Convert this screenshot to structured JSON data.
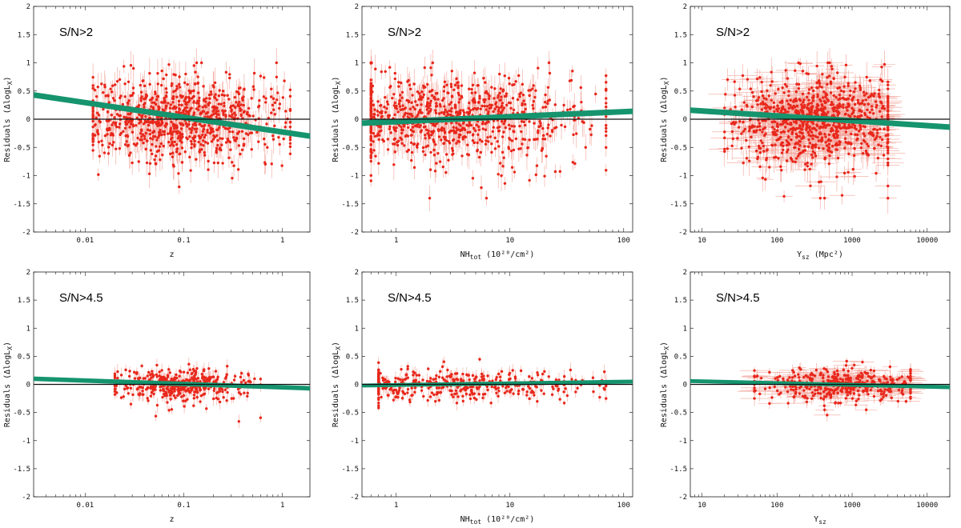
{
  "panels_style": {
    "point_color": "#e8271b",
    "errorbar_color": "#f2a49a",
    "band_color": "#15946e",
    "zero_line_color": "#111111",
    "frame_color": "#222222"
  },
  "chart_data": [
    {
      "type": "scatter",
      "xscale": "log",
      "xlim": [
        0.003,
        1.9
      ],
      "ylim": [
        -2,
        2
      ],
      "xticks": [
        0.01,
        0.1,
        1
      ],
      "xtick_labels": [
        "0.01",
        "0.1",
        "1"
      ],
      "yticks": [
        -2,
        -1.5,
        -1,
        -0.5,
        0,
        0.5,
        1,
        1.5,
        2
      ],
      "ytick_labels": [
        "-2",
        "-1.5",
        "-1",
        "-0.5",
        "0",
        "0.5",
        "1",
        "1.5",
        "2"
      ],
      "xlabel": "z",
      "xlabel_sub": "",
      "xlabel_tail": "",
      "ylabel": "Residuals (ΔlogL",
      "ylabel_sub": "X",
      "ylabel_tail": ")",
      "annotation": "S/N>2",
      "trend_band": {
        "x": [
          0.003,
          1.9
        ],
        "y": [
          0.43,
          -0.3
        ],
        "width": 0.1
      },
      "cloud": {
        "count": 900,
        "xmin": 0.012,
        "xmax": 1.2,
        "xpeak": 0.09,
        "spread": 0.38,
        "yerr": 0.2,
        "xerr": false
      }
    },
    {
      "type": "scatter",
      "xscale": "log",
      "xlim": [
        0.5,
        120
      ],
      "ylim": [
        -2,
        2
      ],
      "xticks": [
        1,
        10,
        100
      ],
      "xtick_labels": [
        "1",
        "10",
        "100"
      ],
      "yticks": [
        -2,
        -1.5,
        -1,
        -0.5,
        0,
        0.5,
        1,
        1.5,
        2
      ],
      "ytick_labels": [
        "-2",
        "-1.5",
        "-1",
        "-0.5",
        "0",
        "0.5",
        "1",
        "1.5",
        "2"
      ],
      "xlabel": "NH",
      "xlabel_sub": "tot",
      "xlabel_tail": " (10²⁰/cm²)",
      "ylabel": "Residuals (ΔlogL",
      "ylabel_sub": "X",
      "ylabel_tail": ")",
      "annotation": "S/N>2",
      "trend_band": {
        "x": [
          0.5,
          120
        ],
        "y": [
          -0.07,
          0.14
        ],
        "width": 0.1
      },
      "cloud": {
        "count": 900,
        "xmin": 0.6,
        "xmax": 70,
        "xpeak": 3,
        "spread": 0.38,
        "yerr": 0.2,
        "xerr": false
      }
    },
    {
      "type": "scatter",
      "xscale": "log",
      "xlim": [
        7,
        20000
      ],
      "ylim": [
        -2,
        2
      ],
      "xticks": [
        10,
        100,
        1000,
        10000
      ],
      "xtick_labels": [
        "10",
        "100",
        "1000",
        "10000"
      ],
      "yticks": [
        -2,
        -1.5,
        -1,
        -0.5,
        0,
        0.5,
        1,
        1.5,
        2
      ],
      "ytick_labels": [
        "-2",
        "-1.5",
        "-1",
        "-0.5",
        "0",
        "0.5",
        "1",
        "1.5",
        "2"
      ],
      "xlabel": "Y",
      "xlabel_sub": "sz",
      "xlabel_tail": " (Mpc²)",
      "ylabel": "Residuals (ΔlogL",
      "ylabel_sub": "X",
      "ylabel_tail": ")",
      "annotation": "S/N>2",
      "trend_band": {
        "x": [
          7,
          20000
        ],
        "y": [
          0.16,
          -0.14
        ],
        "width": 0.1
      },
      "cloud": {
        "count": 900,
        "xmin": 20,
        "xmax": 3000,
        "xpeak": 350,
        "spread": 0.38,
        "yerr": 0.2,
        "xerr": true
      }
    },
    {
      "type": "scatter",
      "xscale": "log",
      "xlim": [
        0.003,
        1.9
      ],
      "ylim": [
        -2,
        2
      ],
      "xticks": [
        0.01,
        0.1,
        1
      ],
      "xtick_labels": [
        "0.01",
        "0.1",
        "1"
      ],
      "yticks": [
        -2,
        -1.5,
        -1,
        -0.5,
        0,
        0.5,
        1,
        1.5,
        2
      ],
      "ytick_labels": [
        "-2",
        "-1.5",
        "-1",
        "-0.5",
        "0",
        "0.5",
        "1",
        "1.5",
        "2"
      ],
      "xlabel": "z",
      "xlabel_sub": "",
      "xlabel_tail": "",
      "ylabel": "Residuals (ΔlogL",
      "ylabel_sub": "X",
      "ylabel_tail": ")",
      "annotation": "S/N>4.5",
      "trend_band": {
        "x": [
          0.003,
          1.9
        ],
        "y": [
          0.1,
          -0.07
        ],
        "width": 0.08
      },
      "cloud": {
        "count": 420,
        "xmin": 0.02,
        "xmax": 0.6,
        "xpeak": 0.1,
        "spread": 0.14,
        "yerr": 0.1,
        "xerr": false
      }
    },
    {
      "type": "scatter",
      "xscale": "log",
      "xlim": [
        0.5,
        120
      ],
      "ylim": [
        -2,
        2
      ],
      "xticks": [
        1,
        10,
        100
      ],
      "xtick_labels": [
        "1",
        "10",
        "100"
      ],
      "yticks": [
        -2,
        -1.5,
        -1,
        -0.5,
        0,
        0.5,
        1,
        1.5,
        2
      ],
      "ytick_labels": [
        "-2",
        "-1.5",
        "-1",
        "-0.5",
        "0",
        "0.5",
        "1",
        "1.5",
        "2"
      ],
      "xlabel": "NH",
      "xlabel_sub": "tot",
      "xlabel_tail": " (10²⁰/cm²)",
      "ylabel": "Residuals (ΔlogL",
      "ylabel_sub": "X",
      "ylabel_tail": ")",
      "annotation": "S/N>4.5",
      "trend_band": {
        "x": [
          0.5,
          120
        ],
        "y": [
          -0.02,
          0.05
        ],
        "width": 0.07
      },
      "cloud": {
        "count": 420,
        "xmin": 0.7,
        "xmax": 70,
        "xpeak": 3,
        "spread": 0.14,
        "yerr": 0.1,
        "xerr": false
      }
    },
    {
      "type": "scatter",
      "xscale": "log",
      "xlim": [
        7,
        20000
      ],
      "ylim": [
        -2,
        2
      ],
      "xticks": [
        10,
        100,
        1000,
        10000
      ],
      "xtick_labels": [
        "10",
        "100",
        "1000",
        "10000"
      ],
      "yticks": [
        -2,
        -1.5,
        -1,
        -0.5,
        0,
        0.5,
        1,
        1.5,
        2
      ],
      "ytick_labels": [
        "-2",
        "-1.5",
        "-1",
        "-0.5",
        "0",
        "0.5",
        "1",
        "1.5",
        "2"
      ],
      "xlabel": "Y",
      "xlabel_sub": "sz",
      "xlabel_tail": "",
      "ylabel": "Residuals (ΔlogL",
      "ylabel_sub": "X",
      "ylabel_tail": ")",
      "annotation": "S/N>4.5",
      "trend_band": {
        "x": [
          7,
          20000
        ],
        "y": [
          0.06,
          -0.05
        ],
        "width": 0.07
      },
      "cloud": {
        "count": 420,
        "xmin": 50,
        "xmax": 6000,
        "xpeak": 800,
        "spread": 0.14,
        "yerr": 0.1,
        "xerr": true
      }
    }
  ]
}
